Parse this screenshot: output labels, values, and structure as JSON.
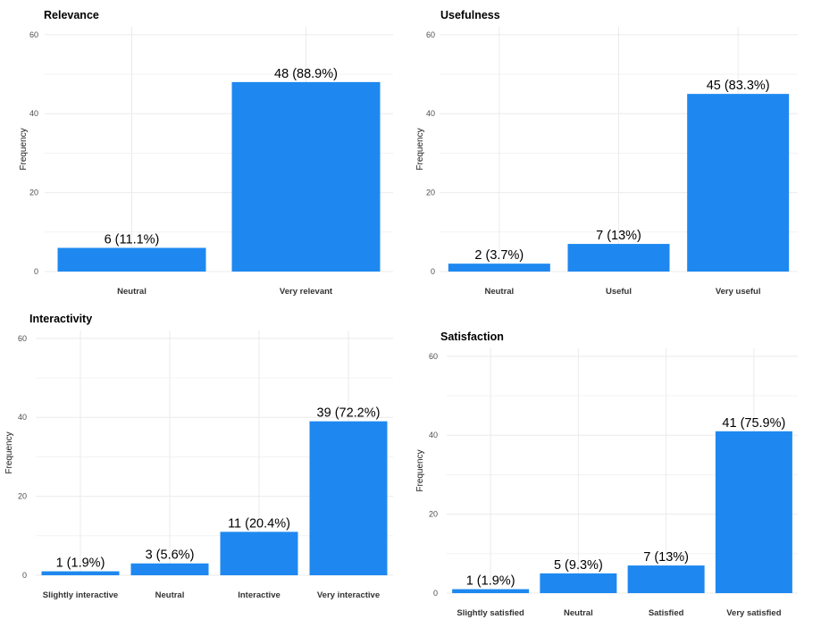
{
  "colors": {
    "bar": "#1E88F0",
    "grid": "#ebebeb"
  },
  "chart_data": [
    {
      "type": "bar",
      "title": "Relevance",
      "ylabel": "Frequency",
      "ylim": [
        0,
        62
      ],
      "yticks": [
        "0",
        "20",
        "40",
        "60"
      ],
      "grid": true,
      "categories": [
        "Neutral",
        "Very relevant"
      ],
      "values": [
        6,
        48
      ],
      "labels": [
        "6 (11.1%)",
        "48 (88.9%)"
      ]
    },
    {
      "type": "bar",
      "title": "Usefulness",
      "ylabel": "Frequency",
      "ylim": [
        0,
        62
      ],
      "yticks": [
        "0",
        "20",
        "40",
        "60"
      ],
      "grid": true,
      "categories": [
        "Neutral",
        "Useful",
        "Very useful"
      ],
      "values": [
        2,
        7,
        45
      ],
      "labels": [
        "2 (3.7%)",
        "7 (13%)",
        "45 (83.3%)"
      ]
    },
    {
      "type": "bar",
      "title": "Interactivity",
      "ylabel": "Frequency",
      "ylim": [
        0,
        62
      ],
      "yticks": [
        "0",
        "20",
        "40",
        "60"
      ],
      "grid": true,
      "categories": [
        "Slightly interactive",
        "Neutral",
        "Interactive",
        "Very interactive"
      ],
      "values": [
        1,
        3,
        11,
        39
      ],
      "labels": [
        "1 (1.9%)",
        "3 (5.6%)",
        "11 (20.4%)",
        "39 (72.2%)"
      ]
    },
    {
      "type": "bar",
      "title": "Satisfaction",
      "ylabel": "Frequency",
      "ylim": [
        0,
        62
      ],
      "yticks": [
        "0",
        "20",
        "40",
        "60"
      ],
      "grid": true,
      "categories": [
        "Slightly satisfied",
        "Neutral",
        "Satisfied",
        "Very satisfied"
      ],
      "values": [
        1,
        5,
        7,
        41
      ],
      "labels": [
        "1 (1.9%)",
        "5 (9.3%)",
        "7 (13%)",
        "41 (75.9%)"
      ]
    }
  ]
}
